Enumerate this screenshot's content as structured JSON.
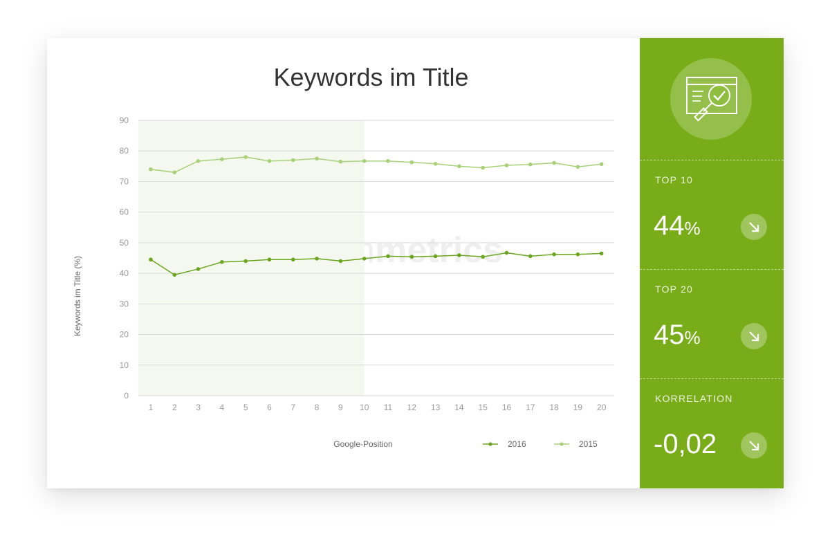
{
  "chart_data": {
    "type": "line",
    "title": "Keywords im Title",
    "xlabel": "Google-Position",
    "ylabel": "Keywords im Title (%)",
    "x": [
      1,
      2,
      3,
      4,
      5,
      6,
      7,
      8,
      9,
      10,
      11,
      12,
      13,
      14,
      15,
      16,
      17,
      18,
      19,
      20
    ],
    "ylim": [
      0,
      90
    ],
    "yticks": [
      0,
      10,
      20,
      30,
      40,
      50,
      60,
      70,
      80,
      90
    ],
    "grid": true,
    "highlight_range": [
      1,
      10
    ],
    "legend_position": "bottom-right",
    "series": [
      {
        "name": "2016",
        "color": "#6aa51e",
        "values": [
          44.5,
          39.5,
          41.4,
          43.7,
          44.0,
          44.5,
          44.5,
          44.8,
          44.0,
          44.8,
          45.6,
          45.4,
          45.6,
          45.9,
          45.4,
          46.7,
          45.6,
          46.2,
          46.2,
          46.5
        ]
      },
      {
        "name": "2015",
        "color": "#a8d077",
        "values": [
          74.0,
          73.0,
          76.7,
          77.3,
          78.0,
          76.7,
          77.0,
          77.5,
          76.5,
          76.7,
          76.7,
          76.3,
          75.8,
          75.0,
          74.5,
          75.3,
          75.6,
          76.1,
          74.8,
          75.7
        ]
      }
    ]
  },
  "watermark": {
    "part1": "search",
    "part2": "metrics"
  },
  "side_panel": {
    "icon": "magnifier-checkmark-icon",
    "accent": "#78ad19",
    "stats": [
      {
        "label": "TOP 10",
        "value": "44",
        "unit": "%",
        "trend_icon": "arrow-down-right-icon"
      },
      {
        "label": "TOP 20",
        "value": "45",
        "unit": "%",
        "trend_icon": "arrow-down-right-icon"
      },
      {
        "label": "KORRELATION",
        "value": "-0,02",
        "unit": "",
        "trend_icon": "arrow-down-right-icon"
      }
    ]
  }
}
